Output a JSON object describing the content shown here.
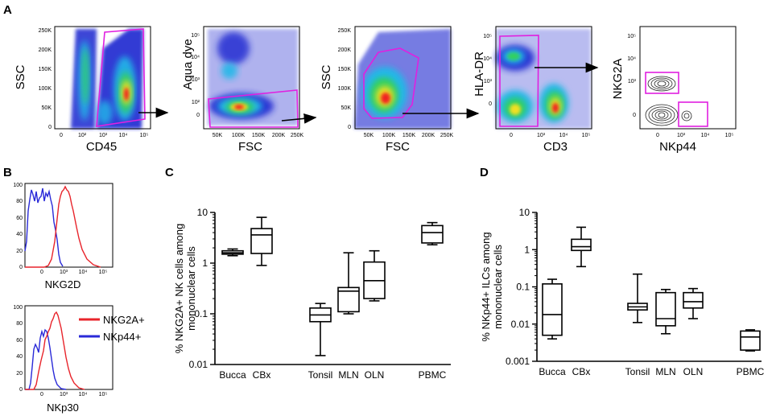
{
  "panels": {
    "A": "A",
    "B": "B",
    "C": "C",
    "D": "D"
  },
  "colors": {
    "gate": "#e020e0",
    "red": "#e8242b",
    "blue": "#2a2ad8",
    "black": "#000000"
  },
  "flow_plots": [
    {
      "xlabel": "CD45",
      "ylabel": "SSC",
      "xticks": [
        "0",
        "10²",
        "10³",
        "10⁴",
        "10⁵"
      ],
      "yticks": [
        "250K",
        "200K",
        "150K",
        "100K",
        "50K",
        "0"
      ]
    },
    {
      "xlabel": "FSC",
      "ylabel": "Aqua dye",
      "xticks": [
        "50K",
        "100K",
        "150K",
        "200K",
        "250K"
      ],
      "yticks": [
        "10⁵",
        "10⁴",
        "10³",
        "10²",
        "0"
      ]
    },
    {
      "xlabel": "FSC",
      "ylabel": "SSC",
      "xticks": [
        "50K",
        "100K",
        "150K",
        "200K",
        "250K"
      ],
      "yticks": [
        "250K",
        "200K",
        "150K",
        "100K",
        "50K",
        "0"
      ]
    },
    {
      "xlabel": "CD3",
      "ylabel": "HLA-DR",
      "xticks": [
        "0",
        "10³",
        "10⁴",
        "10⁵"
      ],
      "yticks": [
        "10⁵",
        "10⁴",
        "10³",
        "0"
      ]
    },
    {
      "xlabel": "NKp44",
      "ylabel": "NKG2A",
      "xticks": [
        "0",
        "10³",
        "10⁴",
        "10⁵"
      ],
      "yticks": [
        "10⁵",
        "10⁴",
        "10³",
        "0"
      ]
    }
  ],
  "histograms": [
    {
      "xlabel": "NKG2D",
      "yticks": [
        "100",
        "80",
        "60",
        "40",
        "20",
        "0"
      ],
      "xticks": [
        "0",
        "10³",
        "10⁴",
        "10⁵"
      ]
    },
    {
      "xlabel": "NKp30",
      "yticks": [
        "100",
        "80",
        "60",
        "40",
        "20",
        "0"
      ],
      "xticks": [
        "0",
        "10³",
        "10⁴",
        "10⁵"
      ],
      "legend": [
        "NKG2A+",
        "NKp44+"
      ]
    }
  ],
  "chart_data": [
    {
      "type": "boxplot",
      "title": "",
      "ylabel": "% NKG2A+ NK cells among mononuclear cells",
      "ylabel_lines": [
        "% NKG2A+ NK cells among",
        "mononuclear cells"
      ],
      "yscale": "log",
      "ylim": [
        0.01,
        10
      ],
      "yticks": [
        "10",
        "1",
        "0.1",
        "0.01"
      ],
      "categories": [
        "Bucca",
        "CBx",
        "Tonsil",
        "MLN",
        "OLN",
        "PBMC"
      ],
      "boxes": [
        {
          "min": 1.4,
          "q1": 1.5,
          "median": 1.6,
          "q3": 1.75,
          "max": 1.9
        },
        {
          "min": 0.9,
          "q1": 1.55,
          "median": 3.6,
          "q3": 4.8,
          "max": 8.0
        },
        {
          "min": 0.015,
          "q1": 0.07,
          "median": 0.095,
          "q3": 0.13,
          "max": 0.16
        },
        {
          "min": 0.1,
          "q1": 0.11,
          "median": 0.28,
          "q3": 0.33,
          "max": 1.6
        },
        {
          "min": 0.18,
          "q1": 0.2,
          "median": 0.45,
          "q3": 1.05,
          "max": 1.75
        },
        {
          "min": 2.3,
          "q1": 2.5,
          "median": 4.0,
          "q3": 5.5,
          "max": 6.3
        }
      ]
    },
    {
      "type": "boxplot",
      "title": "",
      "ylabel": "% NKp44+ ILCs among mononuclear cells",
      "ylabel_lines": [
        "% NKp44+ ILCs among",
        "mononuclear cells"
      ],
      "yscale": "log",
      "ylim": [
        0.001,
        10
      ],
      "yticks": [
        "10",
        "1",
        "0.1",
        "0.01",
        "0.001"
      ],
      "categories": [
        "Bucca",
        "CBx",
        "Tonsil",
        "MLN",
        "OLN",
        "PBMC"
      ],
      "boxes": [
        {
          "min": 0.004,
          "q1": 0.005,
          "median": 0.018,
          "q3": 0.12,
          "max": 0.16
        },
        {
          "min": 0.35,
          "q1": 0.95,
          "median": 1.2,
          "q3": 1.9,
          "max": 4.0
        },
        {
          "min": 0.011,
          "q1": 0.024,
          "median": 0.029,
          "q3": 0.036,
          "max": 0.22
        },
        {
          "min": 0.0055,
          "q1": 0.009,
          "median": 0.014,
          "q3": 0.07,
          "max": 0.085
        },
        {
          "min": 0.014,
          "q1": 0.027,
          "median": 0.04,
          "q3": 0.07,
          "max": 0.09
        },
        {
          "min": 0.0019,
          "q1": 0.002,
          "median": 0.0045,
          "q3": 0.0065,
          "max": 0.007
        }
      ]
    }
  ]
}
